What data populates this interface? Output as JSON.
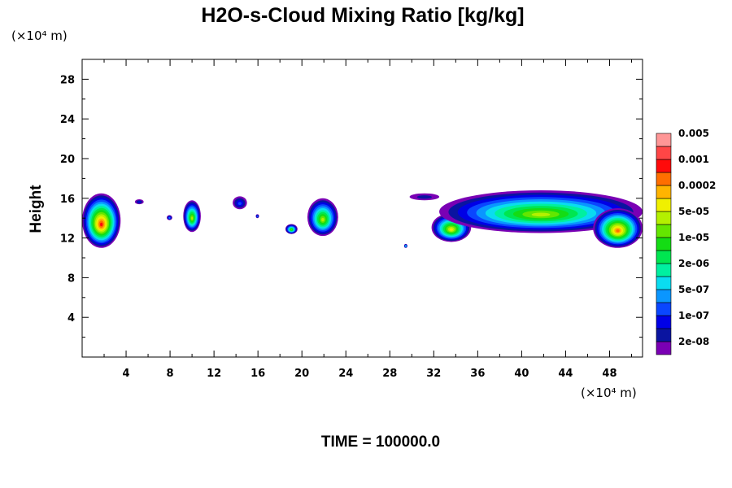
{
  "chart_data": {
    "type": "heatmap",
    "title": "H2O-s-Cloud Mixing Ratio [kg/kg]",
    "ylabel": "Height",
    "x_unit_label": "(×10⁴ m)",
    "y_unit_label": "(×10⁴ m)",
    "footer": "TIME = 100000.0",
    "xlim": [
      0,
      51
    ],
    "ylim": [
      0,
      30
    ],
    "x_ticks": [
      4,
      8,
      12,
      16,
      20,
      24,
      28,
      32,
      36,
      40,
      44,
      48
    ],
    "x_tick_labels": [
      "4",
      "8",
      "12",
      "16",
      "20",
      "24",
      "28",
      "32",
      "36",
      "40",
      "44",
      "48"
    ],
    "y_ticks": [
      4,
      8,
      12,
      16,
      20,
      24,
      28
    ],
    "y_tick_labels": [
      "4",
      "8",
      "12",
      "16",
      "20",
      "24",
      "28"
    ],
    "colorbar": {
      "colors": [
        "#7a00b4",
        "#0a14a0",
        "#0000e6",
        "#0a46ff",
        "#0a96ff",
        "#0adcf0",
        "#00f0a0",
        "#00e650",
        "#14dc14",
        "#64e600",
        "#b4f000",
        "#f0f000",
        "#ffb400",
        "#ff6e00",
        "#ff0a0a",
        "#ff4646",
        "#ff9696"
      ],
      "labels": [
        "2e-08",
        "1e-07",
        "5e-07",
        "2e-06",
        "1e-05",
        "5e-05",
        "0.0002",
        "0.001",
        "0.005"
      ]
    },
    "cloud_regions": [
      {
        "x": [
          0.0,
          3.5
        ],
        "y": [
          11.0,
          16.5
        ],
        "max_level": 14
      },
      {
        "x": [
          4.8,
          5.6
        ],
        "y": [
          15.4,
          15.9
        ],
        "max_level": 2
      },
      {
        "x": [
          7.7,
          8.2
        ],
        "y": [
          13.8,
          14.3
        ],
        "max_level": 4
      },
      {
        "x": [
          9.2,
          10.8
        ],
        "y": [
          12.6,
          15.8
        ],
        "max_level": 10
      },
      {
        "x": [
          13.7,
          15.0
        ],
        "y": [
          14.9,
          16.2
        ],
        "max_level": 3
      },
      {
        "x": [
          15.8,
          16.1
        ],
        "y": [
          14.0,
          14.4
        ],
        "max_level": 4
      },
      {
        "x": [
          18.5,
          19.6
        ],
        "y": [
          12.4,
          13.4
        ],
        "max_level": 9
      },
      {
        "x": [
          20.5,
          23.3
        ],
        "y": [
          12.2,
          16.0
        ],
        "max_level": 10
      },
      {
        "x": [
          29.3,
          29.6
        ],
        "y": [
          11.0,
          11.4
        ],
        "max_level": 7
      },
      {
        "x": [
          29.8,
          32.5
        ],
        "y": [
          15.8,
          16.5
        ],
        "max_level": 1
      },
      {
        "x": [
          31.8,
          35.4
        ],
        "y": [
          11.6,
          14.5
        ],
        "max_level": 11
      },
      {
        "x": [
          32.5,
          51.0
        ],
        "y": [
          12.5,
          16.8
        ],
        "max_level": 10
      },
      {
        "x": [
          46.5,
          51.0
        ],
        "y": [
          11.0,
          15.0
        ],
        "max_level": 13
      }
    ]
  }
}
